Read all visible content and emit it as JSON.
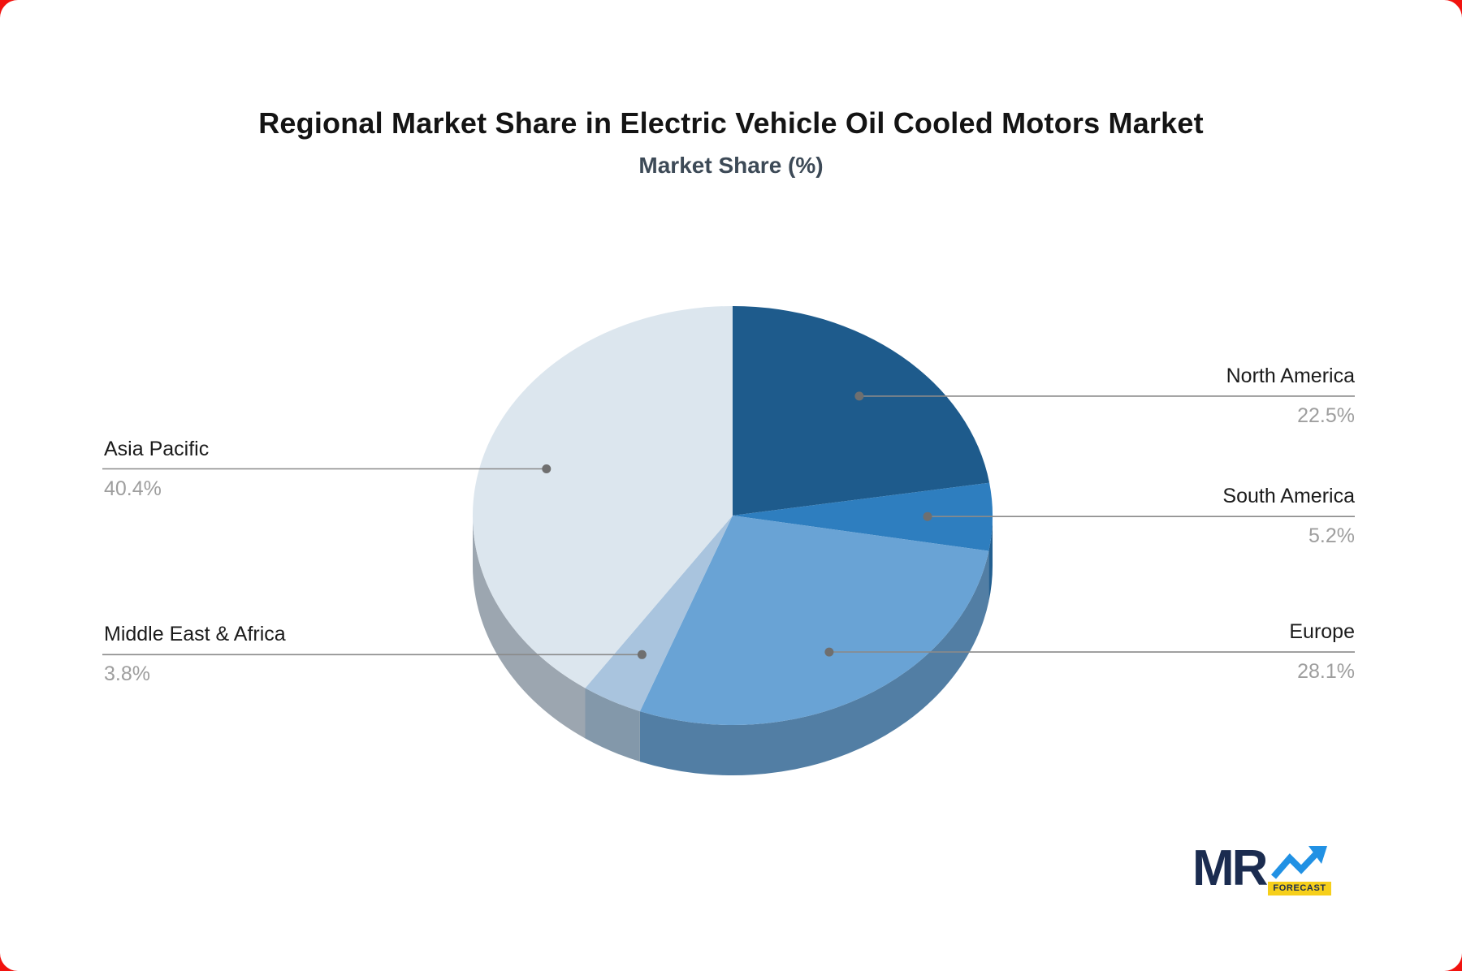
{
  "title": "Regional Market Share in Electric Vehicle Oil Cooled Motors Market",
  "subtitle": "Market Share (%)",
  "chart_data": {
    "type": "pie",
    "style": "3d",
    "unit": "%",
    "title": "Regional Market Share in Electric Vehicle Oil Cooled Motors Market",
    "subtitle": "Market Share (%)",
    "start_angle_deg": 0,
    "clockwise": true,
    "categories": [
      "North America",
      "South America",
      "Europe",
      "Middle East & Africa",
      "Asia Pacific"
    ],
    "values": [
      22.5,
      5.2,
      28.1,
      3.8,
      40.4
    ],
    "slice_colors": [
      "#1e5b8c",
      "#2e7ebf",
      "#69a3d5",
      "#a9c4de",
      "#dce6ee"
    ],
    "side_colors": [
      "#17466b",
      "#235f90",
      "#527ea4",
      "#8398aa",
      "#9ca6b0"
    ],
    "callout_side": [
      "right",
      "right",
      "right",
      "left",
      "left"
    ],
    "leader_line_color": "#8a8a8a",
    "leader_dot_color": "#6f6f6f",
    "label_color": "#1b1b1b",
    "value_color": "#9e9e9e"
  },
  "callouts": [
    {
      "label": "North America",
      "value_text": "22.5%"
    },
    {
      "label": "South America",
      "value_text": "5.2%"
    },
    {
      "label": "Europe",
      "value_text": "28.1%"
    },
    {
      "label": "Asia Pacific",
      "value_text": "40.4%"
    },
    {
      "label": "Middle East & Africa",
      "value_text": "3.8%"
    }
  ],
  "logo": {
    "mr": "MR",
    "forecast": "FORECAST",
    "navy": "#1b2c50",
    "blue": "#2191e4",
    "yellow": "#f6cf1b"
  }
}
